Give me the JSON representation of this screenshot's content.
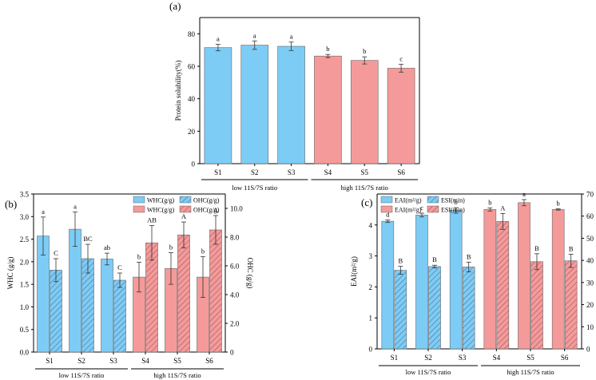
{
  "colors": {
    "blue": "#7DCCF6",
    "red": "#F59A9A",
    "axis": "#000000",
    "hatch": "#5a6f8a"
  },
  "chart_data": [
    {
      "type": "bar",
      "panel": "(a)",
      "ylabel": "Protein solubility(%)",
      "ylim": [
        0,
        90
      ],
      "yticks": [
        0,
        20,
        40,
        60,
        80
      ],
      "categories": [
        "S1",
        "S2",
        "S3",
        "S4",
        "S5",
        "S6"
      ],
      "series": [
        {
          "name": "Protein solubility",
          "values": [
            71.5,
            73.0,
            72.3,
            66.3,
            63.6,
            58.8
          ],
          "errors": [
            2.0,
            2.6,
            2.6,
            1.0,
            2.2,
            2.4
          ],
          "letters": [
            "a",
            "a",
            "a",
            "b",
            "b",
            "c"
          ]
        }
      ],
      "groups": [
        {
          "label": "low 11S/7S ratio",
          "indices": [
            0,
            1,
            2
          ]
        },
        {
          "label": "high 11S/7S ratio",
          "indices": [
            3,
            4,
            5
          ]
        }
      ]
    },
    {
      "type": "bar",
      "panel": "(b)",
      "ylabel": "WHC (g/g)",
      "ylim": [
        0,
        3.5
      ],
      "yticks": [
        0,
        0.5,
        1.0,
        1.5,
        2.0,
        2.5,
        3.0,
        3.5
      ],
      "ytick_labels": [
        "0.0",
        "0.5",
        "1.0",
        "1.5",
        "2.0",
        "2.5",
        "3.0",
        "3.5"
      ],
      "y2label": "OHC (g/g)",
      "y2lim": [
        0,
        11
      ],
      "y2ticks": [
        0,
        2,
        4,
        6,
        8,
        10
      ],
      "y2tick_labels": [
        "0",
        "2.0",
        "4.0",
        "6.0",
        "8.0",
        "10.0"
      ],
      "categories": [
        "S1",
        "S2",
        "S3",
        "S4",
        "S5",
        "S6"
      ],
      "series": [
        {
          "name": "WHC(g/g)",
          "axis": "left",
          "values": [
            2.57,
            2.72,
            2.06,
            1.66,
            1.85,
            1.66
          ],
          "errors": [
            0.42,
            0.38,
            0.13,
            0.33,
            0.35,
            0.45
          ],
          "letters": [
            "a",
            "a",
            "ab",
            "b",
            "b",
            "b"
          ]
        },
        {
          "name": "OHC(g/g)",
          "axis": "right",
          "values": [
            5.7,
            6.5,
            5.0,
            7.6,
            8.15,
            8.5
          ],
          "errors": [
            0.8,
            1.0,
            0.5,
            1.2,
            0.9,
            1.0
          ],
          "letters": [
            "C",
            "BC",
            "C",
            "AB",
            "A",
            "A"
          ]
        }
      ],
      "legend": [
        "WHC(g/g)",
        "OHC(g/g)",
        "WHC(g/g)",
        "OHC(g/g)"
      ],
      "groups": [
        {
          "label": "low 11S/7S ratio",
          "indices": [
            0,
            1,
            2
          ]
        },
        {
          "label": "high 11S/7S ratio",
          "indices": [
            3,
            4,
            5
          ]
        }
      ]
    },
    {
      "type": "bar",
      "panel": "(c)",
      "ylabel": "EAI(m²/g)",
      "ylim": [
        0,
        5
      ],
      "yticks": [
        0,
        1,
        2,
        3,
        4
      ],
      "ytick_labels": [
        "0",
        "1",
        "2",
        "3",
        "4"
      ],
      "y2label": "ESI(min)",
      "y2lim": [
        0,
        70
      ],
      "y2ticks": [
        0,
        10,
        20,
        30,
        40,
        50,
        60,
        70
      ],
      "y2tick_labels": [
        "0",
        "10",
        "20",
        "30",
        "40",
        "50",
        "60",
        "70"
      ],
      "categories": [
        "S1",
        "S2",
        "S3",
        "S4",
        "S5",
        "S6"
      ],
      "series": [
        {
          "name": "EAI(m²/g)",
          "axis": "left",
          "values": [
            4.12,
            4.32,
            4.47,
            4.5,
            4.72,
            4.5
          ],
          "errors": [
            0.04,
            0.06,
            0.09,
            0.05,
            0.1,
            0.02
          ],
          "letters": [
            "d",
            "c",
            "b",
            "b",
            "a",
            "b"
          ]
        },
        {
          "name": "ESI(min)",
          "axis": "right",
          "values": [
            35.5,
            37.2,
            37.0,
            57.6,
            39.4,
            39.8
          ],
          "errors": [
            1.8,
            0.6,
            2.2,
            3.6,
            3.6,
            3.0
          ],
          "letters": [
            "B",
            "B",
            "B",
            "A",
            "B",
            "B"
          ]
        }
      ],
      "legend": [
        "EAI(m²/g)",
        "ESI(min)",
        "EAI(m²/g)",
        "ESI(min)"
      ],
      "groups": [
        {
          "label": "low 11S/7S ratio",
          "indices": [
            0,
            1,
            2
          ]
        },
        {
          "label": "high 11S/7S ratio",
          "indices": [
            3,
            4,
            5
          ]
        }
      ]
    }
  ]
}
